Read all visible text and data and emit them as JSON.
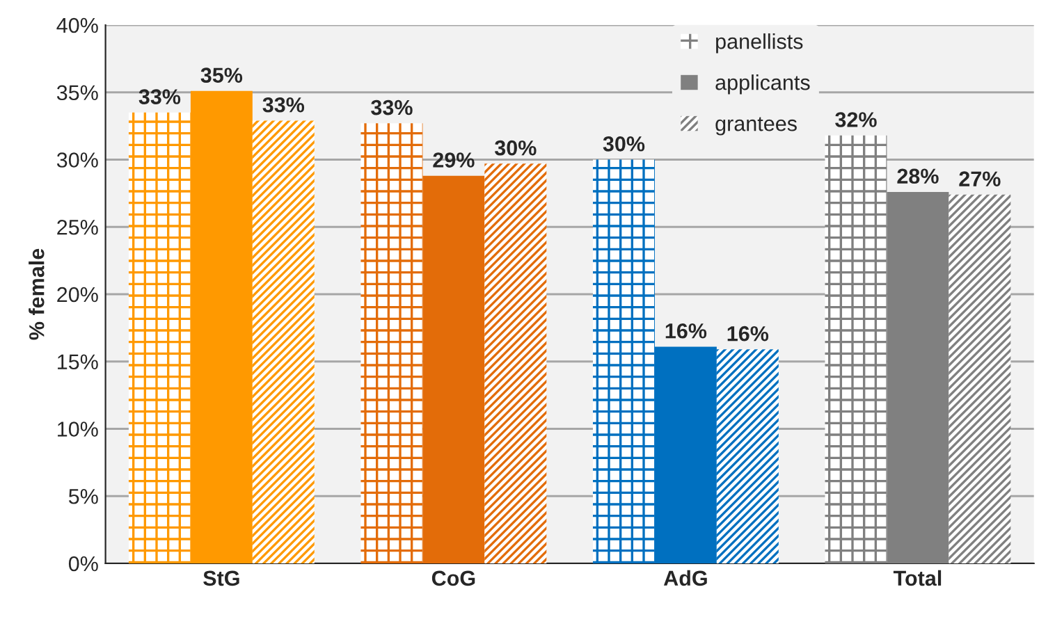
{
  "chart_data": {
    "type": "bar",
    "ylabel": "% female",
    "categories": [
      "StG",
      "CoG",
      "AdG",
      "Total"
    ],
    "series": [
      {
        "name": "panellists",
        "color": "#808080",
        "colors": [
          "#ff9900",
          "#e36c09",
          "#0070c0",
          "#808080"
        ],
        "values": [
          33.5,
          32.7,
          30.0,
          31.8
        ],
        "value_labels": [
          "33%",
          "33%",
          "30%",
          "32%"
        ]
      },
      {
        "name": "applicants",
        "color": "#808080",
        "colors": [
          "#ff9900",
          "#e36c09",
          "#0070c0",
          "#808080"
        ],
        "values": [
          35.1,
          28.8,
          16.1,
          27.6
        ],
        "value_labels": [
          "35%",
          "29%",
          "16%",
          "28%"
        ]
      },
      {
        "name": "grantees",
        "color": "#808080",
        "colors": [
          "#ff9900",
          "#e36c09",
          "#0070c0",
          "#808080"
        ],
        "values": [
          32.9,
          29.7,
          15.9,
          27.4
        ],
        "value_labels": [
          "33%",
          "30%",
          "16%",
          "27%"
        ]
      }
    ],
    "ylim": [
      0,
      40
    ],
    "yticks": [
      {
        "value": 0,
        "label": "0%"
      },
      {
        "value": 5,
        "label": "5%"
      },
      {
        "value": 10,
        "label": "10%"
      },
      {
        "value": 15,
        "label": "15%"
      },
      {
        "value": 20,
        "label": "20%"
      },
      {
        "value": 25,
        "label": "25%"
      },
      {
        "value": 30,
        "label": "30%"
      },
      {
        "value": 35,
        "label": "35%"
      },
      {
        "value": 40,
        "label": "40%"
      }
    ],
    "grid": "y",
    "legend": "top right"
  }
}
